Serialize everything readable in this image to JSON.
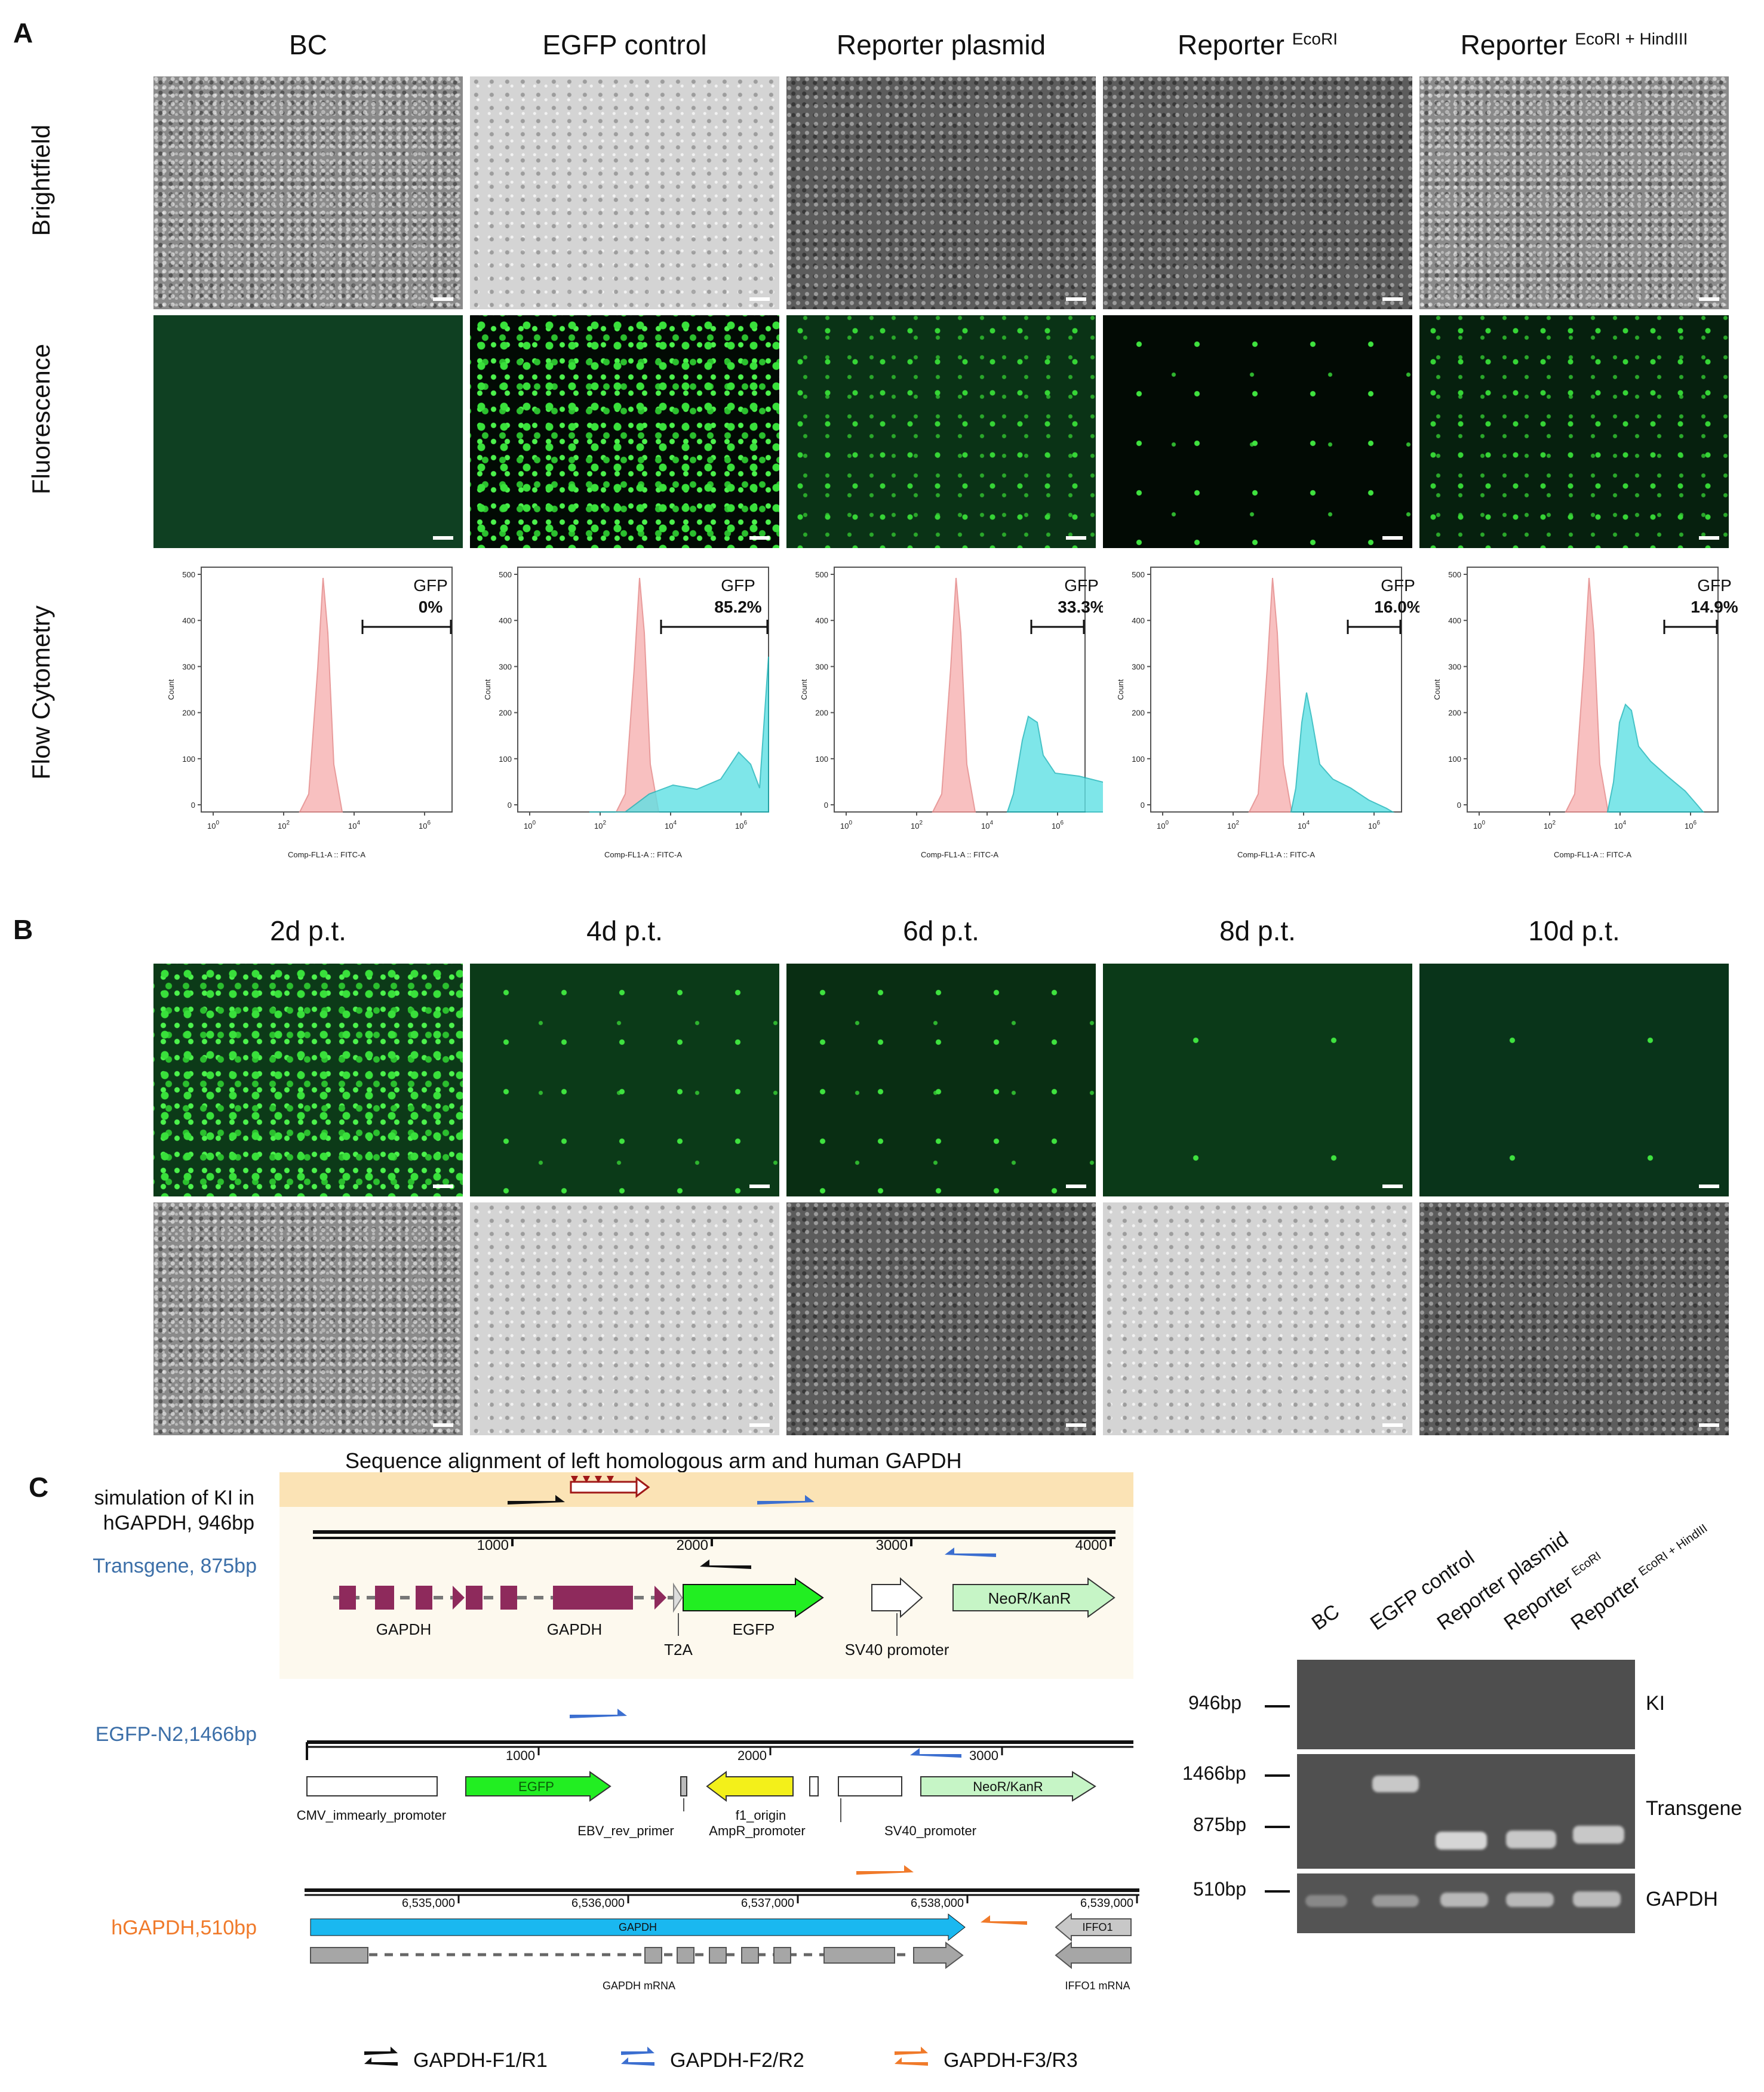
{
  "panels": {
    "a": "A",
    "b": "B",
    "c": "C"
  },
  "panel_a": {
    "columns": [
      {
        "main": "BC",
        "sup": ""
      },
      {
        "main": "EGFP control",
        "sup": ""
      },
      {
        "main": "Reporter plasmid",
        "sup": ""
      },
      {
        "main": "Reporter",
        "sup": "EcoRI"
      },
      {
        "main": "Reporter",
        "sup": "EcoRI + HindIII"
      }
    ],
    "rows": [
      "Brightfield",
      "Fluorescence",
      "Flow Cytometry"
    ],
    "flow": [
      {
        "gate_label": "GFP",
        "gfp_percent": "0%"
      },
      {
        "gate_label": "GFP",
        "gfp_percent": "85.2%"
      },
      {
        "gate_label": "GFP",
        "gfp_percent": "33.3%"
      },
      {
        "gate_label": "GFP",
        "gfp_percent": "16.0%"
      },
      {
        "gate_label": "GFP",
        "gfp_percent": "14.9%"
      }
    ],
    "flow_axis": {
      "xlabel": "Comp-FL1-A :: FITC-A",
      "ylabel": "Count",
      "yticks": [
        "0",
        "100",
        "200",
        "300",
        "400",
        "500"
      ],
      "xticks": [
        "0",
        "2",
        "4",
        "6"
      ]
    }
  },
  "panel_b": {
    "columns": [
      "2d p.t.",
      "4d p.t.",
      "6d p.t.",
      "8d p.t.",
      "10d p.t."
    ]
  },
  "panel_c": {
    "map_title": "Sequence alignment of left homologous arm and human GAPDH",
    "rows": {
      "ki": [
        "simulation of KI in",
        "hGAPDH, 946bp"
      ],
      "transgene": "Transgene, 875bp",
      "egfp_n2": "EGFP-N2,1466bp",
      "hgapdh": "hGAPDH,510bp"
    },
    "transgene_map": {
      "ticks": [
        "1000",
        "2000",
        "3000",
        "4000"
      ],
      "features": [
        "GAPDH",
        "GAPDH",
        "T2A",
        "EGFP",
        "SV40 promoter",
        "NeoR/KanR"
      ]
    },
    "egfp_map": {
      "ticks": [
        "1000",
        "2000",
        "3000"
      ],
      "features": [
        "EGFP",
        "NeoR/KanR",
        "CMV_immearly_promoter",
        "EBV_rev_primer",
        "f1_origin",
        "AmpR_promoter",
        "SV40_promoter"
      ]
    },
    "gapdh_map": {
      "ticks": [
        "6,535,000",
        "6,536,000",
        "6,537,000",
        "6,538,000",
        "6,539,000"
      ],
      "features": [
        "GAPDH",
        "IFFO1",
        "GAPDH mRNA",
        "IFFO1 mRNA"
      ]
    },
    "legend": [
      "GAPDH-F1/R1",
      "GAPDH-F2/R2",
      "GAPDH-F3/R3"
    ],
    "gel": {
      "lanes": [
        "BC",
        "EGFP control",
        "Reporter plasmid",
        "Reporter",
        "Reporter"
      ],
      "lane_sups": [
        "",
        "",
        "",
        "EcoRI",
        "EcoRI + HindIII"
      ],
      "markers": [
        "946bp",
        "1466bp",
        "875bp",
        "510bp"
      ],
      "row_labels": [
        "KI",
        "Transgene",
        "GAPDH"
      ]
    }
  },
  "colors": {
    "egfp": "#22ee22",
    "gapdh_exon": "#8e2a5c",
    "neo": "#c6f5c6",
    "cyan_gapdh": "#1ab8f0",
    "primer_black": "#111111",
    "primer_blue": "#3c6fd0",
    "primer_orange": "#f07a2a",
    "ki_highlight": "#fbe3b5"
  }
}
